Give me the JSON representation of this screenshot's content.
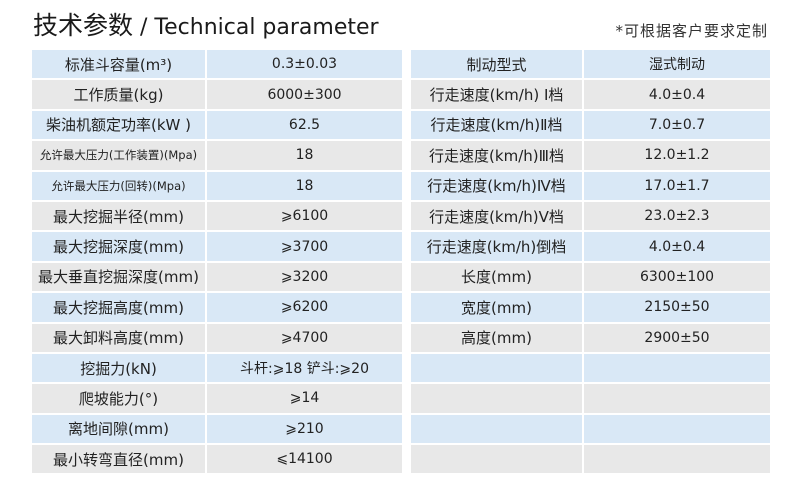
{
  "title": {
    "cn": "技术参数",
    "sep": " / ",
    "en": "Technical parameter"
  },
  "note": "*可根据客户要求定制",
  "left_table": [
    [
      "标准斗容量(m³)",
      "0.3±0.03"
    ],
    [
      "工作质量(kg)",
      "6000±300"
    ],
    [
      "柴油机额定功率(kW )",
      "62.5"
    ],
    [
      "允许最大压力(工作装置)(Mpa)",
      "18"
    ],
    [
      "允许最大压力(回转)(Mpa)",
      "18"
    ],
    [
      "最大挖掘半径(mm)",
      "⩾6100"
    ],
    [
      "最大挖掘深度(mm)",
      "⩾3700"
    ],
    [
      "最大垂直挖掘深度(mm)",
      "⩾3200"
    ],
    [
      "最大挖掘高度(mm)",
      "⩾6200"
    ],
    [
      "最大卸料高度(mm)",
      "⩾4700"
    ],
    [
      "挖掘力(kN)",
      "斗杆:⩾18 铲斗:⩾20"
    ],
    [
      "爬坡能力(°)",
      "⩾14"
    ],
    [
      "离地间隙(mm)",
      "⩾210"
    ],
    [
      "最小转弯直径(mm)",
      "⩽14100"
    ]
  ],
  "right_table": [
    [
      "制动型式",
      "湿式制动"
    ],
    [
      "行走速度(km/h) Ⅰ档",
      "4.0±0.4"
    ],
    [
      "行走速度(km/h)Ⅱ档",
      "7.0±0.7"
    ],
    [
      "行走速度(km/h)Ⅲ档",
      "12.0±1.2"
    ],
    [
      "行走速度(km/h)Ⅳ档",
      "17.0±1.7"
    ],
    [
      "行走速度(km/h)Ⅴ档",
      "23.0±2.3"
    ],
    [
      "行走速度(km/h)倒档",
      "4.0±0.4"
    ],
    [
      "长度(mm)",
      "6300±100"
    ],
    [
      "宽度(mm)",
      "2150±50"
    ],
    [
      "高度(mm)",
      "2900±50"
    ],
    [
      "",
      ""
    ],
    [
      "",
      ""
    ],
    [
      "",
      ""
    ],
    [
      "",
      ""
    ]
  ]
}
